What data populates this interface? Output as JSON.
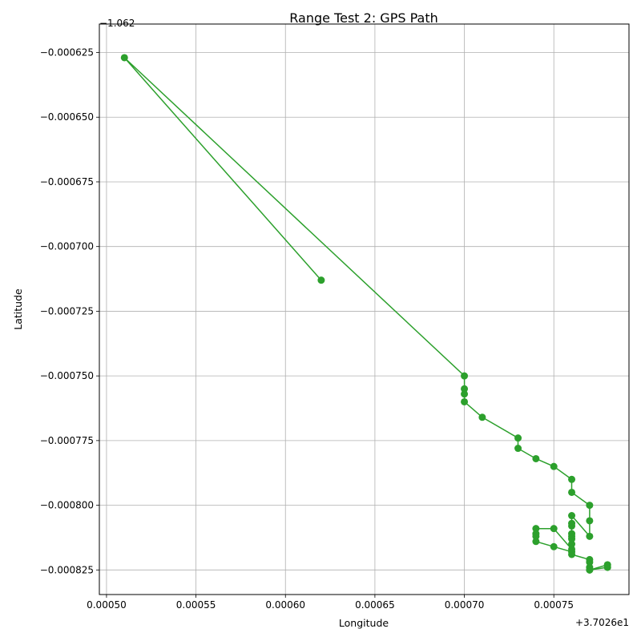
{
  "chart_data": {
    "type": "line",
    "title": "Range Test 2: GPS Path",
    "xlabel": "Longitude",
    "ylabel": "Latitude",
    "x_offset_label": "+3.7026e1",
    "y_offset_label": "−1.062",
    "x_offset": 37.026,
    "y_offset": -1.062,
    "xlim": [
      0.000496,
      0.000792
    ],
    "ylim": [
      -0.0008345,
      -0.000614
    ],
    "x_ticks": [
      0.0005,
      0.00055,
      0.0006,
      0.00065,
      0.0007,
      0.00075
    ],
    "x_tick_labels": [
      "0.00050",
      "0.00055",
      "0.00060",
      "0.00065",
      "0.00070",
      "0.00075"
    ],
    "y_ticks": [
      -0.000625,
      -0.00065,
      -0.000675,
      -0.0007,
      -0.000725,
      -0.00075,
      -0.000775,
      -0.0008,
      -0.000825
    ],
    "y_tick_labels": [
      "−0.000625",
      "−0.000650",
      "−0.000675",
      "−0.000700",
      "−0.000725",
      "−0.000750",
      "−0.000775",
      "−0.000800",
      "−0.000825"
    ],
    "grid": true,
    "line_color": "#2ca02c",
    "marker": "circle",
    "x": [
      0.00062,
      0.00051,
      0.0007,
      0.0007,
      0.0007,
      0.0007,
      0.00071,
      0.00073,
      0.00073,
      0.00074,
      0.00075,
      0.00076,
      0.00076,
      0.00077,
      0.00077,
      0.00077,
      0.00076,
      0.00076,
      0.00076,
      0.00076,
      0.00076,
      0.00076,
      0.00076,
      0.00076,
      0.00075,
      0.00074,
      0.00074,
      0.00074,
      0.00074,
      0.00075,
      0.00076,
      0.00076,
      0.00077,
      0.00077,
      0.00077,
      0.00077,
      0.00078,
      0.00078,
      0.00077
    ],
    "y": [
      -0.000713,
      -0.000627,
      -0.00075,
      -0.000755,
      -0.000757,
      -0.00076,
      -0.000766,
      -0.000774,
      -0.000778,
      -0.000782,
      -0.000785,
      -0.00079,
      -0.000795,
      -0.0008,
      -0.000806,
      -0.000812,
      -0.000804,
      -0.000807,
      -0.000808,
      -0.000811,
      -0.000812,
      -0.000813,
      -0.000815,
      -0.000817,
      -0.000809,
      -0.000809,
      -0.000811,
      -0.000812,
      -0.000814,
      -0.000816,
      -0.000818,
      -0.000819,
      -0.000821,
      -0.000822,
      -0.000824,
      -0.000825,
      -0.000823,
      -0.000824,
      -0.000825
    ]
  }
}
